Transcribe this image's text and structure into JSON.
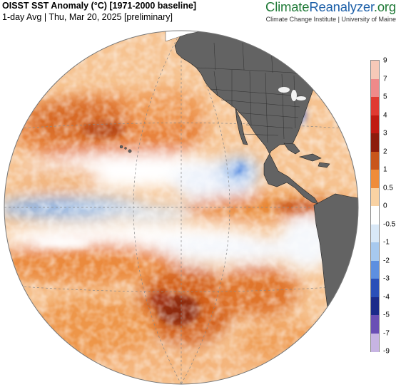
{
  "header": {
    "title": "OISST SST Anomaly (°C) [1971-2000 baseline]",
    "subtitle": "1-day Avg | Thu, Mar 20, 2025 [preliminary]"
  },
  "brand": {
    "part1": "Climate",
    "part2": "Reanalyzer",
    "part3": ".org",
    "sub": "Climate Change Institute | University of Maine"
  },
  "colors": {
    "land": "#636363",
    "coast": "#222222",
    "grid": "#8a8a8a",
    "neutral": "#ffffff"
  },
  "colorbar": {
    "ticks": [
      "9",
      "7",
      "5",
      "4",
      "3",
      "2",
      "1",
      "0.5",
      "0",
      "-0.5",
      "-1",
      "-2",
      "-3",
      "-4",
      "-5",
      "-7",
      "-9"
    ],
    "bands": [
      {
        "range": [
          7,
          9
        ],
        "color": "#f7c9b8"
      },
      {
        "range": [
          5,
          7
        ],
        "color": "#ef8a8a"
      },
      {
        "range": [
          4,
          5
        ],
        "color": "#e03a32"
      },
      {
        "range": [
          3,
          4
        ],
        "color": "#c01a12"
      },
      {
        "range": [
          2,
          3
        ],
        "color": "#8c1c0c"
      },
      {
        "range": [
          1,
          2
        ],
        "color": "#c8561b"
      },
      {
        "range": [
          0.5,
          1
        ],
        "color": "#ef8c3a"
      },
      {
        "range": [
          0,
          0.5
        ],
        "color": "#f9d2a3"
      },
      {
        "range": [
          -0.5,
          0
        ],
        "color": "#ffffff"
      },
      {
        "range": [
          -1,
          -0.5
        ],
        "color": "#d9e8f7"
      },
      {
        "range": [
          -2,
          -1
        ],
        "color": "#a7c9ef"
      },
      {
        "range": [
          -3,
          -2
        ],
        "color": "#5d8fe0"
      },
      {
        "range": [
          -4,
          -3
        ],
        "color": "#2a4fb8"
      },
      {
        "range": [
          -5,
          -4
        ],
        "color": "#1b2b8a"
      },
      {
        "range": [
          -7,
          -5
        ],
        "color": "#6a4fb5"
      },
      {
        "range": [
          -9,
          -7
        ],
        "color": "#c7b4e3"
      }
    ]
  }
}
